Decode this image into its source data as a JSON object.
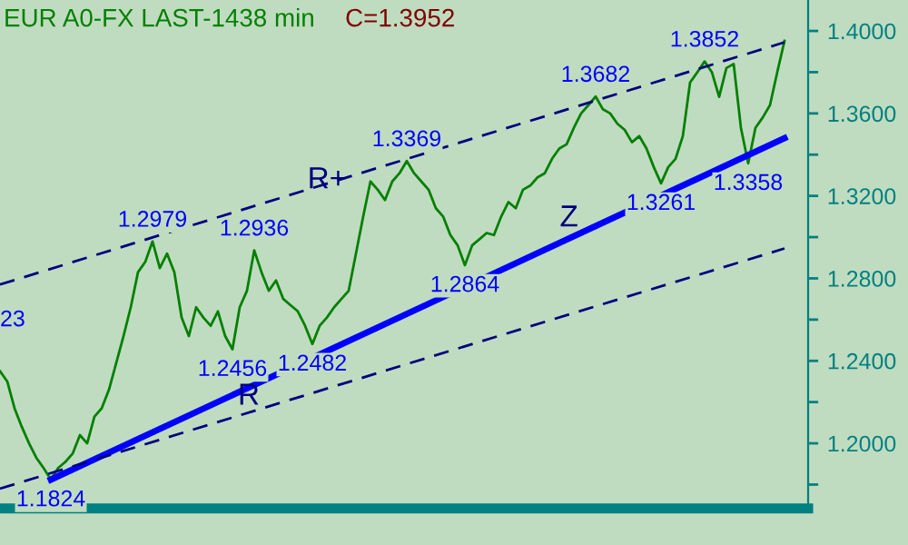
{
  "chart_data": {
    "type": "line",
    "title": "EUR A0-FX LAST-1438 min",
    "subtitle": "C=1.3952",
    "categories": [
      null,
      null,
      null,
      null,
      null,
      null,
      null,
      null,
      null,
      null,
      null,
      null,
      null,
      null,
      null,
      null,
      null,
      null,
      null,
      null,
      null,
      null,
      null,
      null,
      null,
      null,
      null,
      null,
      null,
      null,
      null,
      null,
      null,
      null,
      null,
      null,
      null,
      null,
      null,
      null,
      null,
      null,
      null,
      null,
      null,
      null,
      null,
      null,
      null,
      null,
      null,
      null,
      null,
      null,
      null,
      null,
      null,
      null,
      null,
      null,
      null,
      null,
      null,
      null,
      null,
      null,
      null,
      null,
      null,
      null,
      null,
      null,
      null,
      null,
      null,
      null,
      null,
      null,
      null,
      null,
      null,
      null,
      null,
      null,
      null,
      null,
      null,
      null,
      null,
      null,
      null,
      null,
      null,
      null,
      null,
      null,
      null,
      null,
      null,
      null,
      null,
      null,
      null,
      null,
      null,
      null,
      null,
      null,
      null
    ],
    "series": [
      {
        "color": "#008000",
        "values": [
          1.235,
          1.23,
          1.217,
          1.208,
          1.2,
          1.193,
          1.188,
          1.1824,
          1.188,
          1.191,
          1.195,
          1.204,
          1.2,
          1.213,
          1.217,
          1.226,
          1.239,
          1.252,
          1.266,
          1.283,
          1.288,
          1.2979,
          1.285,
          1.292,
          1.283,
          1.261,
          1.252,
          1.266,
          1.261,
          1.257,
          1.264,
          1.252,
          1.2456,
          1.266,
          1.274,
          1.2936,
          1.283,
          1.274,
          1.279,
          1.27,
          1.267,
          1.264,
          1.257,
          1.2482,
          1.257,
          1.261,
          1.266,
          1.27,
          1.274,
          1.292,
          1.31,
          1.327,
          1.323,
          1.318,
          1.327,
          1.331,
          1.3369,
          1.331,
          1.327,
          1.323,
          1.314,
          1.31,
          1.301,
          1.296,
          1.2864,
          1.296,
          1.299,
          1.302,
          1.301,
          1.31,
          1.317,
          1.314,
          1.323,
          1.325,
          1.329,
          1.331,
          1.338,
          1.343,
          1.345,
          1.353,
          1.36,
          1.364,
          1.3682,
          1.362,
          1.36,
          1.355,
          1.352,
          1.346,
          1.349,
          1.343,
          1.334,
          1.3261,
          1.334,
          1.338,
          1.349,
          1.375,
          1.38,
          1.3852,
          1.38,
          1.368,
          1.382,
          1.384,
          1.353,
          1.3358,
          1.353,
          1.358,
          1.364,
          1.38,
          1.3952
        ]
      },
      {
        "name": "Z",
        "color": "#0000ff",
        "values": [
          null,
          null,
          null,
          null,
          null,
          null,
          null,
          1.1824,
          null,
          null,
          null,
          null,
          null,
          null,
          null,
          null,
          null,
          null,
          null,
          null,
          null,
          null,
          null,
          null,
          null,
          null,
          null,
          null,
          null,
          null,
          null,
          null,
          null,
          null,
          null,
          null,
          null,
          null,
          null,
          null,
          null,
          null,
          null,
          null,
          null,
          null,
          null,
          null,
          null,
          null,
          null,
          null,
          null,
          null,
          null,
          null,
          null,
          null,
          null,
          null,
          null,
          null,
          null,
          null,
          null,
          null,
          null,
          null,
          null,
          null,
          null,
          null,
          null,
          null,
          null,
          null,
          null,
          null,
          null,
          null,
          null,
          null,
          null,
          null,
          null,
          null,
          null,
          null,
          null,
          null,
          null,
          null,
          null,
          null,
          null,
          null,
          null,
          null,
          null,
          null,
          null,
          null,
          null,
          null,
          null,
          null,
          null,
          null,
          1.348
        ]
      },
      {
        "name": "R+",
        "color": "#000080",
        "line_style": "dashed",
        "values": [
          1.277,
          null,
          null,
          null,
          null,
          null,
          null,
          null,
          null,
          null,
          null,
          null,
          null,
          null,
          null,
          null,
          null,
          null,
          null,
          null,
          null,
          null,
          null,
          null,
          null,
          null,
          null,
          null,
          null,
          null,
          null,
          null,
          null,
          null,
          null,
          null,
          null,
          null,
          null,
          null,
          null,
          null,
          null,
          null,
          null,
          null,
          null,
          null,
          null,
          null,
          null,
          null,
          null,
          null,
          null,
          null,
          null,
          null,
          null,
          null,
          null,
          null,
          null,
          null,
          null,
          null,
          null,
          null,
          null,
          null,
          null,
          null,
          null,
          null,
          null,
          null,
          null,
          null,
          null,
          null,
          null,
          null,
          null,
          null,
          null,
          null,
          null,
          null,
          null,
          null,
          null,
          null,
          null,
          null,
          null,
          null,
          null,
          null,
          null,
          null,
          null,
          null,
          null,
          null,
          null,
          null,
          null,
          null,
          1.3945
        ]
      },
      {
        "name": "R",
        "color": "#000080",
        "line_style": "dashed",
        "values": [
          1.178,
          null,
          null,
          null,
          null,
          null,
          null,
          null,
          null,
          null,
          null,
          null,
          null,
          null,
          null,
          null,
          null,
          null,
          null,
          null,
          null,
          null,
          null,
          null,
          null,
          null,
          null,
          null,
          null,
          null,
          null,
          null,
          null,
          null,
          null,
          null,
          null,
          null,
          null,
          null,
          null,
          null,
          null,
          null,
          null,
          null,
          null,
          null,
          null,
          null,
          null,
          null,
          null,
          null,
          null,
          null,
          null,
          null,
          null,
          null,
          null,
          null,
          null,
          null,
          null,
          null,
          null,
          null,
          null,
          null,
          null,
          null,
          null,
          null,
          null,
          null,
          null,
          null,
          null,
          null,
          null,
          null,
          null,
          null,
          null,
          null,
          null,
          null,
          null,
          null,
          null,
          null,
          null,
          null,
          null,
          null,
          null,
          null,
          null,
          null,
          null,
          null,
          null,
          null,
          null,
          null,
          null,
          null,
          1.2945
        ]
      }
    ],
    "annotations": [
      "23",
      {
        "text": "1.1824",
        "y": 1.1824
      },
      {
        "text": "1.2979",
        "y": 1.2979
      },
      {
        "text": "1.2456",
        "y": 1.2456
      },
      {
        "text": "1.2936",
        "y": 1.2936
      },
      {
        "text": "1.2482",
        "y": 1.2482
      },
      {
        "text": "1.3369",
        "y": 1.3369
      },
      {
        "text": "1.2864",
        "y": 1.2864
      },
      {
        "text": "1.3682",
        "y": 1.3682
      },
      {
        "text": "1.3261",
        "y": 1.3261
      },
      {
        "text": "1.3852",
        "y": 1.3852
      },
      {
        "text": "1.3358",
        "y": 1.3358
      }
    ],
    "ylim": [
      1.1684,
      1.415
    ],
    "yticks": [
      {
        "value": 1.18,
        "label": null
      },
      {
        "value": 1.2,
        "label": "1.2000"
      },
      {
        "value": 1.22,
        "label": null
      },
      {
        "value": 1.24,
        "label": "1.2400"
      },
      {
        "value": 1.26,
        "label": null
      },
      {
        "value": 1.28,
        "label": "1.2800"
      },
      {
        "value": 1.3,
        "label": null
      },
      {
        "value": 1.32,
        "label": "1.3200"
      },
      {
        "value": 1.34,
        "label": null
      },
      {
        "value": 1.36,
        "label": "1.3600"
      },
      {
        "value": 1.38,
        "label": null
      },
      {
        "value": 1.4,
        "label": "1.4000"
      }
    ],
    "tick_labels": "y",
    "grid": false,
    "legend": false,
    "marker": "none",
    "line_style": "solid"
  }
}
